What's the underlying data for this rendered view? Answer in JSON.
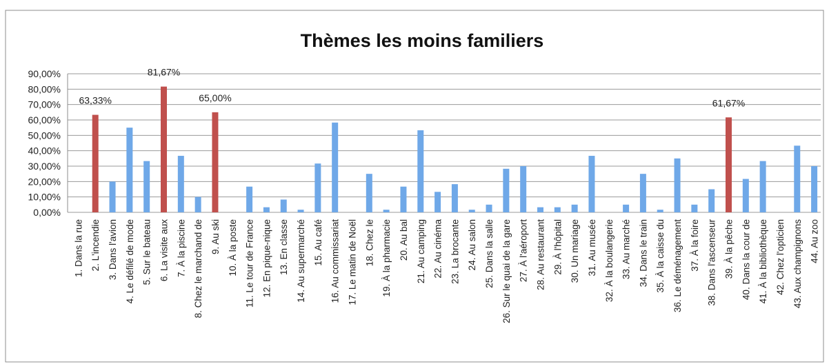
{
  "chart_data": {
    "type": "bar",
    "title": "Thèmes les moins familiers",
    "categories": [
      "1. Dans la rue",
      "2. L'incendie",
      "3. Dans l'avion",
      "4. Le défilé de mode",
      "5. Sur le bateau",
      "6. La visite aux",
      "7. À la piscine",
      "8. Chez le marchand de",
      "9. Au ski",
      "10. À la poste",
      "11. Le tour de France",
      "12. En pique-nique",
      "13. En classe",
      "14. Au supermarché",
      "15. Au café",
      "16. Au commissariat",
      "17. Le matin de Noël",
      "18. Chez le",
      "19. À la pharmacie",
      "20. Au bal",
      "21. Au camping",
      "22. Au cinéma",
      "23. La brocante",
      "24. Au salon",
      "25. Dans la salle",
      "26. Sur le quai de la gare",
      "27. À l'aéroport",
      "28. Au restaurant",
      "29. À l'hôpital",
      "30. Un mariage",
      "31. Au musée",
      "32. À la boulangerie",
      "33. Au marché",
      "34. Dans le train",
      "35. À la caisse du",
      "36. Le déménagement",
      "37. À la foire",
      "38. Dans l'ascenseur",
      "39. À la pêche",
      "40. Dans la cour de",
      "41. À la bibliothèque",
      "42. Chez l'opticien",
      "43. Aux champignons",
      "44. Au zoo"
    ],
    "values": [
      0,
      63.33,
      20,
      55,
      33.3,
      81.67,
      36.7,
      10,
      65,
      0,
      16.7,
      3.3,
      8.3,
      1.7,
      31.7,
      58.3,
      0,
      25,
      1.7,
      16.7,
      53.3,
      13.3,
      18.3,
      1.7,
      5,
      28.3,
      30,
      3.3,
      3.3,
      5,
      36.7,
      0,
      5,
      25,
      1.7,
      35,
      5,
      15,
      61.67,
      21.7,
      33.3,
      0,
      43.3,
      30
    ],
    "value_labels": [
      null,
      "63,33%",
      null,
      null,
      null,
      "81,67%",
      null,
      null,
      "65,00%",
      null,
      null,
      null,
      null,
      null,
      null,
      null,
      null,
      null,
      null,
      null,
      null,
      null,
      null,
      null,
      null,
      null,
      null,
      null,
      null,
      null,
      null,
      null,
      null,
      null,
      null,
      null,
      null,
      null,
      "61,67%",
      null,
      null,
      null,
      null,
      null
    ],
    "colors": [
      "#6fa8e8",
      "#c0504d",
      "#6fa8e8",
      "#6fa8e8",
      "#6fa8e8",
      "#c0504d",
      "#6fa8e8",
      "#6fa8e8",
      "#c0504d",
      "#6fa8e8",
      "#6fa8e8",
      "#6fa8e8",
      "#6fa8e8",
      "#6fa8e8",
      "#6fa8e8",
      "#6fa8e8",
      "#6fa8e8",
      "#6fa8e8",
      "#6fa8e8",
      "#6fa8e8",
      "#6fa8e8",
      "#6fa8e8",
      "#6fa8e8",
      "#6fa8e8",
      "#6fa8e8",
      "#6fa8e8",
      "#6fa8e8",
      "#6fa8e8",
      "#6fa8e8",
      "#6fa8e8",
      "#6fa8e8",
      "#6fa8e8",
      "#6fa8e8",
      "#6fa8e8",
      "#6fa8e8",
      "#6fa8e8",
      "#6fa8e8",
      "#6fa8e8",
      "#c0504d",
      "#6fa8e8",
      "#6fa8e8",
      "#6fa8e8",
      "#6fa8e8",
      "#6fa8e8"
    ],
    "ylim": [
      0,
      90
    ],
    "yticks": [
      {
        "value": 0,
        "label": "0,00%"
      },
      {
        "value": 10,
        "label": "10,00%"
      },
      {
        "value": 20,
        "label": "20,00%"
      },
      {
        "value": 30,
        "label": "30,00%"
      },
      {
        "value": 40,
        "label": "40,00%"
      },
      {
        "value": 50,
        "label": "50,00%"
      },
      {
        "value": 60,
        "label": "60,00%"
      },
      {
        "value": 70,
        "label": "70,00%"
      },
      {
        "value": 80,
        "label": "80,00%"
      },
      {
        "value": 90,
        "label": "90,00%"
      }
    ],
    "grid": true
  }
}
